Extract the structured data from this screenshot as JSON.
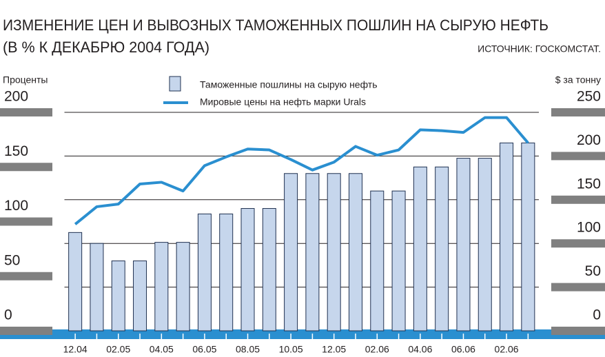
{
  "chart_data": {
    "type": "bar",
    "title": "ИЗМЕНЕНИЕ ЦЕН И ВЫВОЗНЫХ ТАМОЖЕННЫХ ПОШЛИН НА СЫРУЮ НЕФТЬ",
    "subtitle": "(В % К ДЕКАБРЮ 2004 ГОДА)",
    "source": "ИСТОЧНИК: ГОСКОМСТАТ.",
    "ylabel": "Проценты",
    "y2label": "$ за тонну",
    "categories": [
      "12.04",
      null,
      "02.05",
      null,
      "04.05",
      null,
      "06.05",
      null,
      "08.05",
      null,
      "10.05",
      null,
      "12.05",
      null,
      "02.06",
      null,
      "04.06",
      null,
      "06.06",
      null,
      "02.06",
      null
    ],
    "series": [
      {
        "name": "Таможенные пошлины на сырую нефть",
        "type": "bar",
        "color": "#c6d6ec",
        "values": [
          90,
          80,
          64,
          64,
          81,
          81,
          107,
          107,
          112,
          112,
          144,
          144,
          144,
          144,
          128,
          128,
          150,
          150,
          158,
          158,
          172,
          172
        ]
      },
      {
        "name": "Мировые цены на нефть марки Urals",
        "type": "line",
        "axis": "y2",
        "color": "#2a8fd0",
        "values": [
          122,
          142,
          145,
          168,
          170,
          160,
          189,
          199,
          208,
          207,
          196,
          184,
          193,
          211,
          201,
          207,
          230,
          229,
          227,
          244,
          244,
          215
        ]
      }
    ],
    "ylim": [
      0,
      200
    ],
    "yticks": [
      0,
      50,
      100,
      150,
      200
    ],
    "y2lim": [
      0,
      250
    ],
    "y2ticks": [
      0,
      50,
      100,
      150,
      200,
      250
    ],
    "grid": true
  }
}
